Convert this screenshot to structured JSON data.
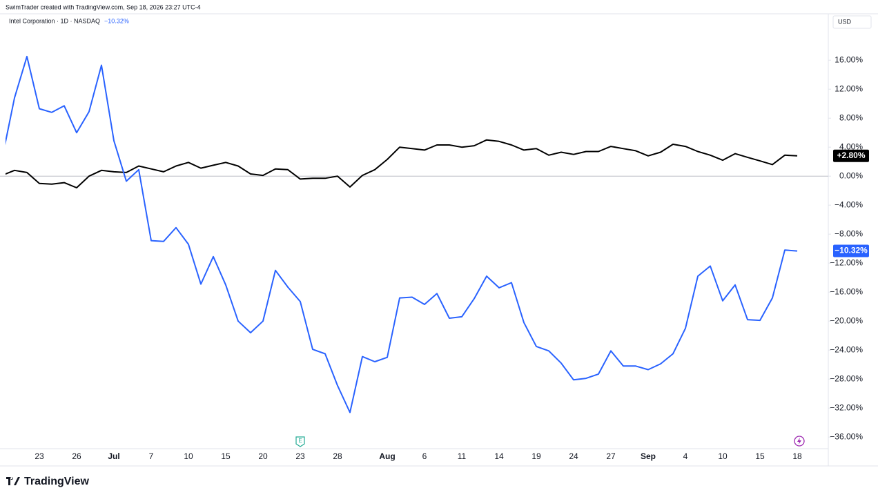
{
  "chart_data": {
    "type": "line",
    "credit": "SwimTrader created with TradingView.com, Sep 18, 2026 23:27 UTC-4",
    "currency": "USD",
    "brand": "TradingView",
    "categories": [
      null,
      null,
      null,
      "23",
      null,
      null,
      "26",
      null,
      null,
      "Jul",
      null,
      null,
      "7",
      null,
      null,
      "10",
      null,
      null,
      "15",
      null,
      null,
      "20",
      null,
      null,
      "23",
      null,
      null,
      "28",
      null,
      null,
      null,
      "Aug",
      null,
      null,
      "6",
      null,
      null,
      "11",
      null,
      null,
      "14",
      null,
      null,
      "19",
      null,
      null,
      "24",
      null,
      null,
      "27",
      null,
      null,
      "Sep",
      null,
      null,
      "4",
      null,
      null,
      "10",
      null,
      null,
      "15",
      null,
      null,
      "18"
    ],
    "series": [
      {
        "name": "Intel Corporation · 1D · NASDAQ",
        "color": "#2962ff",
        "last_value_label": "−10.32%",
        "values": [
          2.4,
          10.8,
          16.5,
          9.3,
          8.8,
          9.7,
          6.0,
          8.9,
          15.3,
          4.9,
          -0.7,
          0.9,
          -8.9,
          -9.0,
          -7.1,
          -9.4,
          -14.9,
          -11.1,
          -15.0,
          -20.0,
          -21.6,
          -20.0,
          -13.0,
          -15.3,
          -17.3,
          -23.9,
          -24.5,
          -28.9,
          -32.6,
          -24.9,
          -25.6,
          -25.0,
          -16.8,
          -16.7,
          -17.7,
          -16.2,
          -19.6,
          -19.4,
          -16.9,
          -13.8,
          -15.4,
          -14.7,
          -20.2,
          -23.5,
          -24.1,
          -25.8,
          -28.1,
          -27.9,
          -27.3,
          -24.1,
          -26.2,
          -26.2,
          -26.7,
          -25.9,
          -24.5,
          -21.0,
          -13.8,
          -12.4,
          -17.2,
          -15.0,
          -19.8,
          -19.9,
          -16.8,
          -10.2,
          -10.32
        ]
      },
      {
        "color": "#000000",
        "last_value_label": "+2.80%",
        "values": [
          0.1,
          0.8,
          0.5,
          -1.0,
          -1.1,
          -0.9,
          -1.6,
          0.0,
          0.8,
          0.6,
          0.5,
          1.4,
          1.0,
          0.6,
          1.4,
          1.9,
          1.1,
          1.5,
          1.9,
          1.4,
          0.3,
          0.1,
          1.0,
          0.9,
          -0.4,
          -0.3,
          -0.3,
          0.0,
          -1.5,
          0.1,
          0.9,
          2.3,
          4.0,
          3.8,
          3.6,
          4.3,
          4.3,
          4.0,
          4.2,
          5.0,
          4.8,
          4.3,
          3.6,
          3.8,
          2.9,
          3.3,
          3.0,
          3.4,
          3.4,
          4.1,
          3.8,
          3.5,
          2.8,
          3.3,
          4.4,
          4.1,
          3.4,
          2.9,
          2.2,
          3.1,
          2.6,
          2.1,
          1.6,
          2.9,
          2.8
        ]
      }
    ],
    "ylim": [
      -37.6,
      22.4
    ],
    "yticks": [
      {
        "value": 16,
        "label": "16.00%"
      },
      {
        "value": 12,
        "label": "12.00%"
      },
      {
        "value": 8,
        "label": "8.00%"
      },
      {
        "value": 4,
        "label": "4.00%"
      },
      {
        "value": 0,
        "label": "0.00%"
      },
      {
        "value": -4,
        "label": "−4.00%"
      },
      {
        "value": -8,
        "label": "−8.00%"
      },
      {
        "value": -12,
        "label": "−12.00%"
      },
      {
        "value": -16,
        "label": "−16.00%"
      },
      {
        "value": -20,
        "label": "−20.00%"
      },
      {
        "value": -24,
        "label": "−24.00%"
      },
      {
        "value": -28,
        "label": "−28.00%"
      },
      {
        "value": -32,
        "label": "−32.00%"
      },
      {
        "value": -36,
        "label": "−36.00%"
      }
    ],
    "zero_line": true,
    "grid": false
  }
}
